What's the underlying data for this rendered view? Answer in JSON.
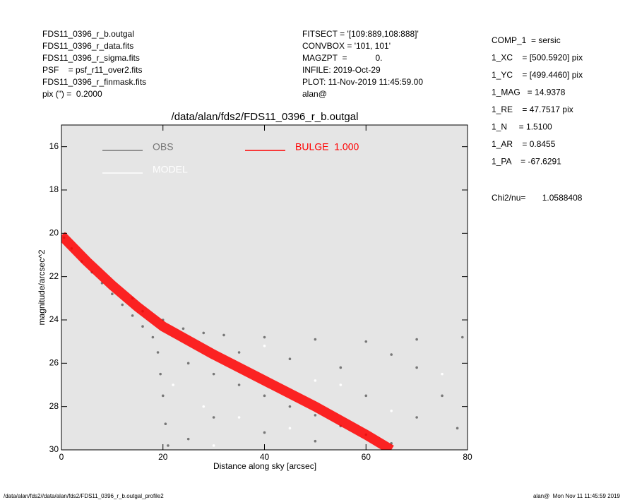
{
  "header": {
    "left": [
      "FDS11_0396_r_b.outgal",
      "FDS11_0396_r_data.fits",
      "FDS11_0396_r_sigma.fits",
      "PSF    = psf_r11_over2.fits",
      "FDS11_0396_r_finmask.fits",
      "pix (\") =  0.2000"
    ],
    "middle": [
      "FITSECT = '[109:889,108:888]'",
      "CONVBOX = '101, 101'",
      "MAGZPT  =            0.",
      "INFILE: 2019-Oct-29",
      "PLOT: 11-Nov-2019 11:45:59.00",
      "alan@"
    ],
    "right": [
      "COMP_1  = sersic",
      "1_XC    = [500.5920] pix",
      "1_YC    = [499.4460] pix",
      "1_MAG   = 14.9378",
      "1_RE    = 47.7517 pix",
      "1_N     = 1.5100",
      "1_AR    = 0.8455",
      "1_PA    = -67.6291"
    ],
    "chi": "Chi2/nu=       1.0588408"
  },
  "footer": {
    "left": "/data/alan/fds2//data/alan/fds2/FDS11_0396_r_b.outgal_profile2",
    "right": "alan@  Mon Nov 11 11:45:59 2019"
  },
  "chart_data": {
    "type": "scatter",
    "title": "/data/alan/fds2/FDS11_0396_r_b.outgal",
    "x_label": "Distance along sky [arcsec]",
    "y_label": "magnitude/arcsec^2",
    "xlim": [
      0,
      80
    ],
    "xticks": [
      0,
      20,
      40,
      60,
      80
    ],
    "ylim": [
      30,
      15
    ],
    "yticks": [
      16,
      18,
      20,
      22,
      24,
      26,
      28,
      30
    ],
    "background": "#e5e5e5",
    "series": [
      {
        "name": "OBS",
        "color": "#777777",
        "kind": "points",
        "x": [
          0.5,
          2,
          4,
          6,
          8,
          10,
          12,
          14,
          16,
          18,
          19,
          19.5,
          20,
          20.5,
          21,
          14,
          16,
          20,
          24,
          28,
          32,
          40,
          50,
          60,
          70,
          79,
          25,
          30,
          35,
          40,
          45,
          50,
          55,
          60,
          65,
          30,
          40,
          50,
          70,
          75,
          78,
          35,
          45,
          55,
          65,
          25,
          60,
          70
        ],
        "values": [
          20.2,
          20.7,
          21.3,
          21.8,
          22.3,
          22.8,
          23.3,
          23.8,
          24.3,
          24.8,
          25.5,
          26.5,
          27.5,
          28.8,
          29.8,
          23.0,
          23.6,
          24.0,
          24.4,
          24.6,
          24.7,
          24.8,
          24.9,
          25.0,
          24.9,
          24.8,
          26.0,
          26.5,
          27.0,
          27.5,
          28.0,
          28.4,
          28.9,
          29.3,
          29.7,
          28.5,
          29.2,
          29.6,
          26.2,
          27.5,
          29.0,
          25.5,
          25.8,
          26.2,
          25.6,
          29.5,
          27.5,
          28.5
        ]
      },
      {
        "name": "MODEL",
        "color": "#ffffff",
        "kind": "points",
        "x": [
          22,
          28,
          35,
          45,
          55,
          65,
          75,
          40,
          50,
          30
        ],
        "values": [
          27.0,
          28.0,
          28.5,
          29.0,
          27.0,
          28.2,
          26.5,
          25.2,
          26.8,
          29.8
        ]
      },
      {
        "name": "BULGE  1.000",
        "color": "#ff0000",
        "kind": "band",
        "x": [
          0,
          5,
          10,
          15,
          20,
          30,
          40,
          50,
          60,
          65
        ],
        "values": [
          20.1,
          21.3,
          22.4,
          23.4,
          24.3,
          25.6,
          26.8,
          28.0,
          29.3,
          30.0
        ]
      }
    ]
  }
}
